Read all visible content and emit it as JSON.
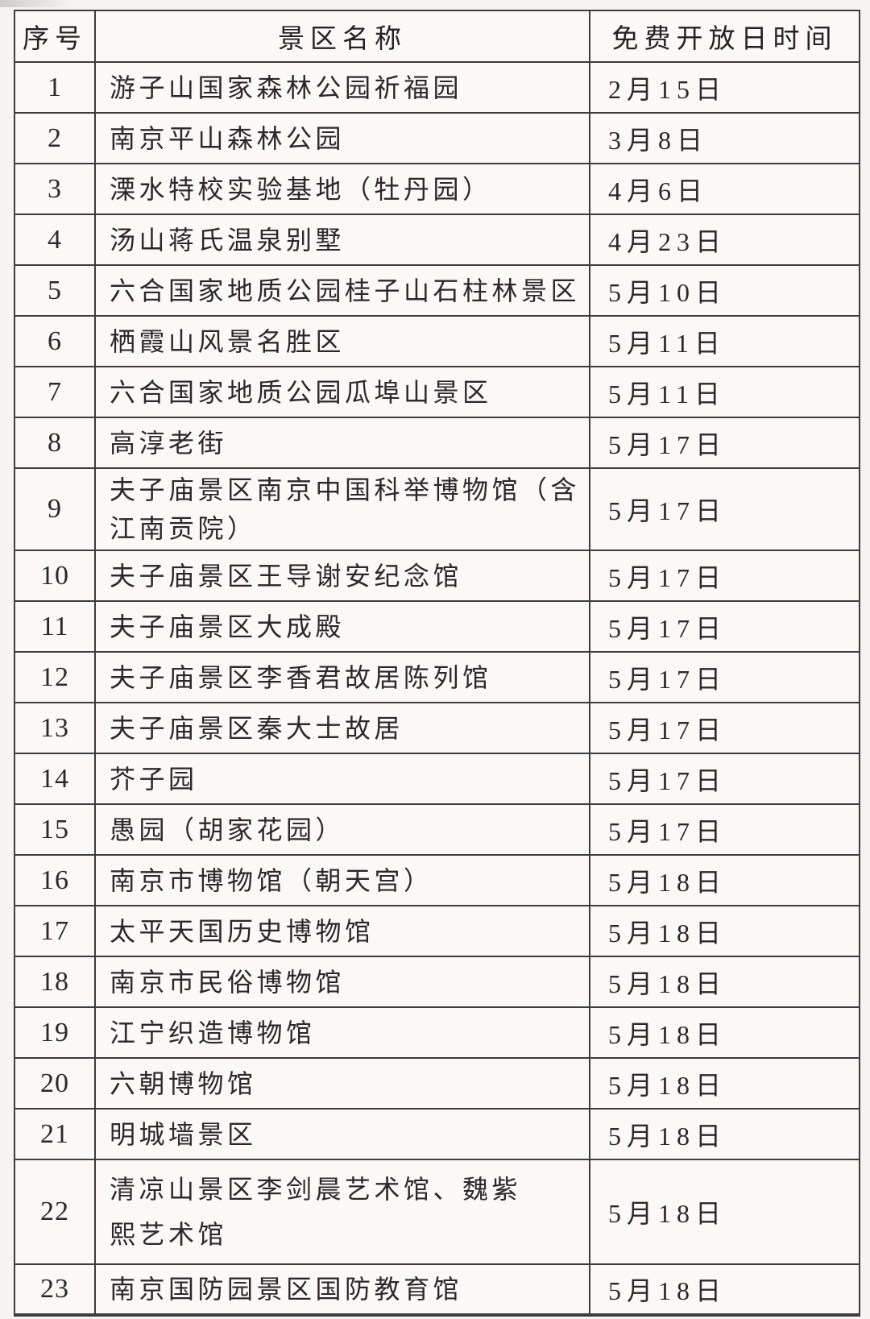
{
  "table": {
    "headers": {
      "no": "序号",
      "name": "景区名称",
      "date": "免费开放日时间"
    },
    "rows": [
      {
        "no": "1",
        "name": "游子山国家森林公园祈福园",
        "date": "2月15日"
      },
      {
        "no": "2",
        "name": "南京平山森林公园",
        "date": "3月8日"
      },
      {
        "no": "3",
        "name": "溧水特校实验基地（牡丹园）",
        "date": "4月6日"
      },
      {
        "no": "4",
        "name": "汤山蒋氏温泉别墅",
        "date": "4月23日"
      },
      {
        "no": "5",
        "name": "六合国家地质公园桂子山石柱林景区",
        "date": "5月10日"
      },
      {
        "no": "6",
        "name": "栖霞山风景名胜区",
        "date": "5月11日"
      },
      {
        "no": "7",
        "name": "六合国家地质公园瓜埠山景区",
        "date": "5月11日"
      },
      {
        "no": "8",
        "name": "高淳老街",
        "date": "5月17日"
      },
      {
        "no": "9",
        "name": "夫子庙景区南京中国科举博物馆（含江南贡院）",
        "date": "5月17日"
      },
      {
        "no": "10",
        "name": "夫子庙景区王导谢安纪念馆",
        "date": "5月17日"
      },
      {
        "no": "11",
        "name": "夫子庙景区大成殿",
        "date": "5月17日"
      },
      {
        "no": "12",
        "name": "夫子庙景区李香君故居陈列馆",
        "date": "5月17日"
      },
      {
        "no": "13",
        "name": "夫子庙景区秦大士故居",
        "date": "5月17日"
      },
      {
        "no": "14",
        "name": "芥子园",
        "date": "5月17日"
      },
      {
        "no": "15",
        "name": "愚园（胡家花园）",
        "date": "5月17日"
      },
      {
        "no": "16",
        "name": "南京市博物馆（朝天宫）",
        "date": "5月18日"
      },
      {
        "no": "17",
        "name": "太平天国历史博物馆",
        "date": "5月18日"
      },
      {
        "no": "18",
        "name": "南京市民俗博物馆",
        "date": "5月18日"
      },
      {
        "no": "19",
        "name": "江宁织造博物馆",
        "date": "5月18日"
      },
      {
        "no": "20",
        "name": "六朝博物馆",
        "date": "5月18日"
      },
      {
        "no": "21",
        "name": "明城墙景区",
        "date": "5月18日"
      },
      {
        "no": "22",
        "name": "清凉山景区李剑晨艺术馆、魏紫熙艺术馆",
        "date": "5月18日"
      },
      {
        "no": "23",
        "name": "南京国防园景区国防教育馆",
        "date": "5月18日"
      }
    ]
  },
  "colors": {
    "border": "#3d3c3c",
    "text": "#2a2828",
    "page_background": "#f6f4f3",
    "cell_background": "#faf9f8"
  }
}
